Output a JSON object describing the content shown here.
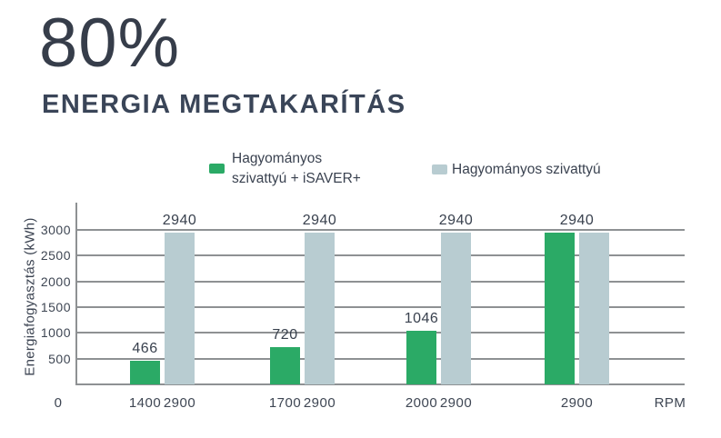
{
  "colors": {
    "accent_green": "#2BAA66",
    "accent_gray_blue": "#B8CCD1",
    "ink_dark": "#363D4A",
    "ink_navy": "#3A4558",
    "grid_gray": "#8E9193"
  },
  "chart_data": {
    "type": "bar",
    "title": "80%",
    "subtitle": "ENERGIA MEGTAKARÍTÁS",
    "ylabel": "Energiafogyasztás (kWh)",
    "ylim": [
      0,
      3200
    ],
    "yticks": [
      500,
      1000,
      1500,
      2000,
      2500,
      3000
    ],
    "grid": true,
    "legend_position": "top",
    "legend": [
      {
        "id": "isaver",
        "lines": [
          "Hagyományos",
          "szivattyú + iSAVER+"
        ],
        "color": "#2BAA66"
      },
      {
        "id": "traditional",
        "lines": [
          "Hagyományos szivattyú"
        ],
        "color": "#B8CCD1"
      }
    ],
    "x_origin_label": "0",
    "x_unit_label": "RPM",
    "groups": [
      {
        "bars": [
          {
            "series": "isaver",
            "rpm": "1400",
            "value": 466,
            "value_label": "466"
          },
          {
            "series": "traditional",
            "rpm": "2900",
            "value": 2940,
            "value_label": "2940"
          }
        ]
      },
      {
        "bars": [
          {
            "series": "isaver",
            "rpm": "1700",
            "value": 720,
            "value_label": "720"
          },
          {
            "series": "traditional",
            "rpm": "2900",
            "value": 2940,
            "value_label": "2940"
          }
        ]
      },
      {
        "bars": [
          {
            "series": "isaver",
            "rpm": "2000",
            "value": 1046,
            "value_label": "1046"
          },
          {
            "series": "traditional",
            "rpm": "2900",
            "value": 2940,
            "value_label": "2940"
          }
        ]
      },
      {
        "shared_rpm": "2900",
        "shared_value_label": "2940",
        "bars": [
          {
            "series": "isaver",
            "value": 2940
          },
          {
            "series": "traditional",
            "value": 2940
          }
        ]
      }
    ]
  }
}
